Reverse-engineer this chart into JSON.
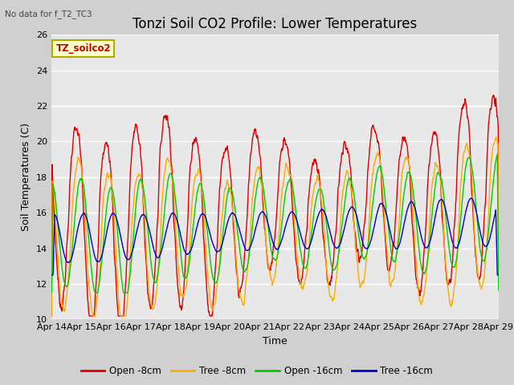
{
  "title": "Tonzi Soil CO2 Profile: Lower Temperatures",
  "top_left_note": "No data for f_T2_TC3",
  "annotation": "TZ_soilco2",
  "ylabel": "Soil Temperatures (C)",
  "xlabel": "Time",
  "ylim": [
    10,
    26
  ],
  "yticks": [
    10,
    12,
    14,
    16,
    18,
    20,
    22,
    24,
    26
  ],
  "xtick_labels": [
    "Apr 14",
    "Apr 15",
    "Apr 16",
    "Apr 17",
    "Apr 18",
    "Apr 19",
    "Apr 20",
    "Apr 21",
    "Apr 22",
    "Apr 23",
    "Apr 24",
    "Apr 25",
    "Apr 26",
    "Apr 27",
    "Apr 28",
    "Apr 29"
  ],
  "series_colors": [
    "#dd0000",
    "#ffaa00",
    "#00cc00",
    "#0000cc"
  ],
  "series_labels": [
    "Open -8cm",
    "Tree -8cm",
    "Open -16cm",
    "Tree -16cm"
  ],
  "line_width": 1.0,
  "plot_bg_color": "#e8e8e8",
  "fig_bg_color": "#d0d0d0",
  "grid_color": "#ffffff",
  "title_fontsize": 12,
  "label_fontsize": 9,
  "tick_fontsize": 8
}
